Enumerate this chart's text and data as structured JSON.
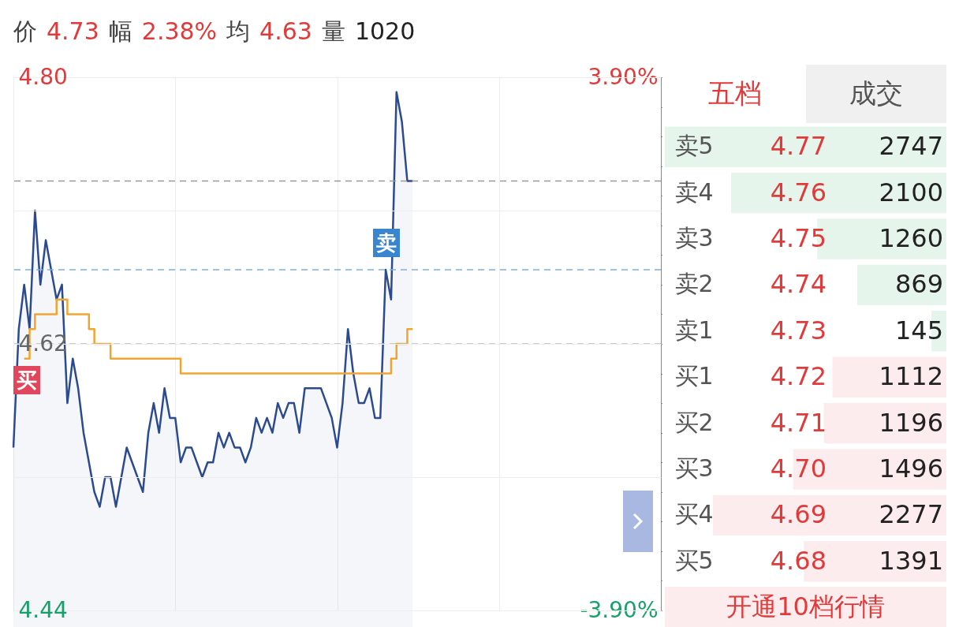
{
  "chart_data": [
    {
      "type": "line",
      "categories": [
        null,
        null,
        null,
        null,
        null,
        null,
        null,
        null,
        null,
        null,
        null,
        null,
        null,
        null,
        null,
        null,
        null,
        null,
        null,
        null,
        null,
        null,
        null,
        null,
        null,
        null,
        null,
        null,
        null,
        null,
        null,
        null,
        null,
        null,
        null,
        null,
        null,
        null,
        null,
        null,
        null,
        null,
        null,
        null,
        null,
        null,
        null,
        null,
        null,
        null,
        null,
        null,
        null,
        null,
        null,
        null,
        null,
        null,
        null,
        null,
        null,
        null,
        null,
        null,
        null,
        null,
        null,
        null,
        null,
        null,
        null,
        null,
        null,
        null,
        null,
        null,
        null,
        null,
        null,
        null,
        null,
        null,
        null,
        null,
        null,
        null,
        null,
        null,
        null,
        null,
        null,
        null,
        null,
        null,
        null,
        null,
        null,
        null,
        null,
        null,
        null,
        null,
        null,
        null,
        null,
        null,
        null,
        null,
        null,
        null,
        null,
        null,
        null,
        null,
        null,
        null,
        null,
        null,
        null,
        null,
        null
      ],
      "series": [
        {
          "type": "area",
          "color": "#2b4a8f",
          "values": [
            4.55,
            4.63,
            4.66,
            4.63,
            4.71,
            4.66,
            4.69,
            4.67,
            4.65,
            4.66,
            4.58,
            4.61,
            4.59,
            4.56,
            4.54,
            4.52,
            4.51,
            4.53,
            4.53,
            4.51,
            4.53,
            4.55,
            4.54,
            4.53,
            4.52,
            4.56,
            4.58,
            4.56,
            4.59,
            4.57,
            4.57,
            4.54,
            4.55,
            4.55,
            4.54,
            4.53,
            4.54,
            4.54,
            4.56,
            4.55,
            4.56,
            4.55,
            4.55,
            4.54,
            4.55,
            4.57,
            4.56,
            4.57,
            4.56,
            4.58,
            4.57,
            4.58,
            4.58,
            4.56,
            4.59,
            4.59,
            4.59,
            4.59,
            4.58,
            4.57,
            4.55,
            4.58,
            4.63,
            4.6,
            4.58,
            4.58,
            4.59,
            4.57,
            4.57,
            4.67,
            4.65,
            4.79,
            4.77,
            4.73,
            4.73,
            null,
            null,
            null,
            null,
            null,
            null,
            null,
            null,
            null,
            null,
            null,
            null,
            null,
            null,
            null,
            null,
            null,
            null,
            null,
            null,
            null,
            null,
            null,
            null,
            null,
            null,
            null,
            null,
            null,
            null,
            null,
            null,
            null,
            null,
            null,
            null,
            null,
            null,
            null,
            null,
            null,
            null,
            null,
            null,
            null,
            null
          ]
        },
        {
          "type": "step",
          "color": "#f0a530",
          "values": [
            null,
            null,
            4.61,
            4.63,
            4.64,
            4.64,
            4.64,
            4.64,
            4.65,
            4.65,
            4.64,
            4.64,
            4.64,
            4.64,
            4.63,
            4.62,
            4.62,
            4.62,
            4.61,
            4.61,
            4.61,
            4.61,
            4.61,
            4.61,
            4.61,
            4.61,
            4.61,
            4.61,
            4.61,
            4.61,
            4.61,
            4.6,
            4.6,
            4.6,
            4.6,
            4.6,
            4.6,
            4.6,
            4.6,
            4.6,
            4.6,
            4.6,
            4.6,
            4.6,
            4.6,
            4.6,
            4.6,
            4.6,
            4.6,
            4.6,
            4.6,
            4.6,
            4.6,
            4.6,
            4.6,
            4.6,
            4.6,
            4.6,
            4.6,
            4.6,
            4.6,
            4.6,
            4.6,
            4.6,
            4.6,
            4.6,
            4.6,
            4.6,
            4.6,
            4.6,
            4.61,
            4.62,
            4.62,
            4.63,
            4.63,
            null,
            null,
            null,
            null,
            null,
            null,
            null,
            null,
            null,
            null,
            null,
            null,
            null,
            null,
            null,
            null,
            null,
            null,
            null,
            null,
            null,
            null,
            null,
            null,
            null,
            null,
            null,
            null,
            null,
            null,
            null,
            null,
            null,
            null,
            null,
            null,
            null,
            null,
            null,
            null,
            null,
            null,
            null,
            null,
            null,
            null
          ]
        }
      ],
      "ylim": [
        4.44,
        4.8
      ],
      "yticks": [
        4.44,
        {
          "value": 4.53,
          "label": null
        },
        4.62,
        {
          "value": 4.71,
          "label": null
        },
        {
          "value": 4.8,
          "label": "4.80"
        }
      ],
      "y2lim": [
        -3.9,
        3.9
      ],
      "y2ticks": [
        {
          "value": -3.9,
          "label": "-3.90%"
        },
        {
          "value": 3.9,
          "label": "3.90%"
        }
      ],
      "grid": true,
      "ref_lines": [
        {
          "axis": "y",
          "value": 4.73,
          "label": null,
          "color": "#999999",
          "line_style": "dashed"
        },
        {
          "axis": "y",
          "value": 4.67,
          "label": "卖",
          "color": "#7fb0e0",
          "line_style": "dashed"
        },
        {
          "axis": "y",
          "value": 4.62,
          "label": null,
          "color": "#bbbbbb",
          "line_style": "dashed"
        }
      ],
      "annotations": [
        "价",
        "4.73",
        "幅",
        "2.38%",
        "均",
        "4.63",
        "量",
        "1020",
        "买"
      ]
    },
    {
      "type": "bar",
      "orientation": "horizontal",
      "categories": [
        "卖5",
        "卖4",
        "卖3",
        "卖2",
        "卖1",
        "买1",
        "买2",
        "买3",
        "买4",
        "买5"
      ],
      "values": [
        2747,
        2100,
        1260,
        869,
        145,
        1112,
        1196,
        1496,
        2277,
        1391
      ],
      "colors": [
        "#e6f5ec",
        "#e6f5ec",
        "#e6f5ec",
        "#e6f5ec",
        "#e6f5ec",
        "#fdeced",
        "#fdeced",
        "#fdeced",
        "#fdeced",
        "#fdeced"
      ],
      "data_labels": true,
      "annotations": [
        "五档",
        "成交",
        "开通10档行情",
        "4.77",
        "4.76",
        "4.75",
        "4.74",
        "4.73",
        "4.72",
        "4.71",
        "4.70",
        "4.69",
        "4.68"
      ]
    }
  ]
}
